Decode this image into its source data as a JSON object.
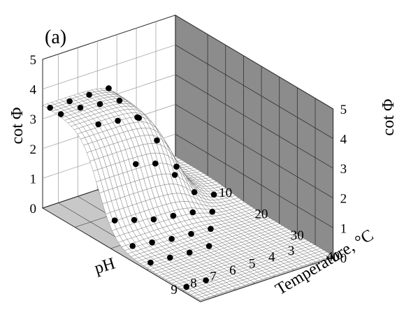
{
  "chart_data": {
    "type": "surface3d",
    "panel_label": "(a)",
    "zlabel": "cot Φ",
    "xlabel": "pH",
    "ylabel": "Temperature, °C",
    "x_ticks": [
      "9",
      "8",
      "7",
      "6",
      "5",
      "4",
      "3"
    ],
    "y_ticks": [
      "10",
      "20",
      "30",
      "40"
    ],
    "z_ticks": [
      "0",
      "1",
      "2",
      "3",
      "4",
      "5"
    ],
    "xlim": [
      3,
      9.8
    ],
    "ylim": [
      1,
      45
    ],
    "zlim": [
      0,
      5
    ],
    "grid": true,
    "surface_model": "cot Φ ≈ 3.4 / (1 + exp((T − 16.5)/2.4)) for pH ≥ 5.8; decreases to ≈0.2 toward pH 3",
    "points": [
      {
        "pH": 9.6,
        "T": 2,
        "cot": 3.4
      },
      {
        "pH": 8.6,
        "T": 2,
        "cot": 3.4
      },
      {
        "pH": 7.6,
        "T": 2,
        "cot": 3.4
      },
      {
        "pH": 6.6,
        "T": 2,
        "cot": 3.4
      },
      {
        "pH": 9.6,
        "T": 5,
        "cot": 3.4
      },
      {
        "pH": 8.6,
        "T": 5,
        "cot": 3.4
      },
      {
        "pH": 7.6,
        "T": 5,
        "cot": 3.3
      },
      {
        "pH": 6.6,
        "T": 5,
        "cot": 3.2
      },
      {
        "pH": 5.6,
        "T": 5,
        "cot": 2.4
      },
      {
        "pH": 8.6,
        "T": 10,
        "cot": 3.2
      },
      {
        "pH": 7.6,
        "T": 10,
        "cot": 3.1
      },
      {
        "pH": 6.6,
        "T": 10,
        "cot": 3.0
      },
      {
        "pH": 5.6,
        "T": 10,
        "cot": 2.0
      },
      {
        "pH": 4.6,
        "T": 10,
        "cot": 0.9
      },
      {
        "pH": 7.6,
        "T": 15,
        "cot": 2.0
      },
      {
        "pH": 6.6,
        "T": 15,
        "cot": 1.8
      },
      {
        "pH": 5.6,
        "T": 15,
        "cot": 1.2
      },
      {
        "pH": 4.6,
        "T": 15,
        "cot": 0.4
      },
      {
        "pH": 3.6,
        "T": 15,
        "cot": 0.1
      },
      {
        "pH": 9.6,
        "T": 20,
        "cot": 0.9
      },
      {
        "pH": 8.6,
        "T": 20,
        "cot": 0.7
      },
      {
        "pH": 7.6,
        "T": 20,
        "cot": 0.5
      },
      {
        "pH": 6.6,
        "T": 20,
        "cot": 0.4
      },
      {
        "pH": 5.6,
        "T": 20,
        "cot": 0.3
      },
      {
        "pH": 4.6,
        "T": 20,
        "cot": 0.1
      },
      {
        "pH": 9.6,
        "T": 25,
        "cot": 0.4
      },
      {
        "pH": 8.6,
        "T": 25,
        "cot": 0.3
      },
      {
        "pH": 7.6,
        "T": 25,
        "cot": 0.2
      },
      {
        "pH": 6.6,
        "T": 25,
        "cot": 0.15
      },
      {
        "pH": 5.6,
        "T": 25,
        "cot": 0.1
      },
      {
        "pH": 9.6,
        "T": 30,
        "cot": 0.2
      },
      {
        "pH": 8.6,
        "T": 30,
        "cot": 0.15
      },
      {
        "pH": 7.6,
        "T": 30,
        "cot": 0.1
      },
      {
        "pH": 6.6,
        "T": 30,
        "cot": 0.1
      },
      {
        "pH": 9.6,
        "T": 40,
        "cot": 0.1
      },
      {
        "pH": 8.6,
        "T": 40,
        "cot": 0.1
      }
    ]
  }
}
